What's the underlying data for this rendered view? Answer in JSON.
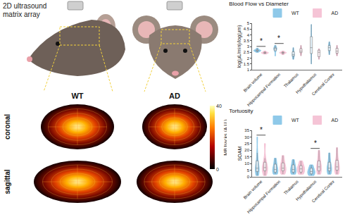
{
  "illustration": {
    "probe_label": [
      "2D ultrasound",
      "matrix array"
    ],
    "groups": [
      "WT",
      "AD"
    ],
    "views": [
      "coronal",
      "sagittal"
    ],
    "colorbar": {
      "label": "MB tracks (A.U.)",
      "range": [
        0,
        40
      ],
      "ticks": [
        0,
        40
      ]
    }
  },
  "chart_data": [
    {
      "type": "violin",
      "title": "Blood Flow vs Diameter",
      "y_label": "log(µL/min)/log(µm)",
      "categories": [
        "Brain volume",
        "Hippocampal Formation",
        "Thalamus",
        "Hypothalamus",
        "Cerebral Cortex"
      ],
      "series": [
        {
          "name": "WT",
          "color": "#8fc9e9",
          "values": [
            [
              2.5,
              2.6,
              2.62,
              2.65,
              2.68,
              2.72,
              2.85
            ],
            [
              2.2,
              2.6,
              2.75,
              2.8,
              2.85,
              2.9,
              3.1
            ],
            [
              1.9,
              2.15,
              2.25,
              2.3,
              2.4,
              2.6,
              2.9
            ],
            [
              1.5,
              2.2,
              2.6,
              2.8,
              3.0,
              3.5,
              4.2,
              4.9
            ],
            [
              2.3,
              2.6,
              2.8,
              2.9,
              3.0,
              3.1,
              3.4
            ]
          ]
        },
        {
          "name": "AD",
          "color": "#f5c4d6",
          "values": [
            [
              2.35,
              2.42,
              2.45,
              2.47,
              2.5,
              2.6
            ],
            [
              2.3,
              2.42,
              2.45,
              2.48,
              2.5,
              2.6
            ],
            [
              2.2,
              2.45,
              2.55,
              2.6,
              2.7,
              2.85,
              3.1
            ],
            [
              1.9,
              2.1,
              2.2,
              2.5,
              2.65,
              2.7,
              2.8
            ],
            [
              2.2,
              2.4,
              2.5,
              2.6,
              2.7,
              2.9,
              3.1
            ]
          ]
        }
      ],
      "ylim": [
        1,
        5
      ],
      "yticks": [
        1,
        1.5,
        2,
        2.5,
        3,
        3.5,
        4,
        4.5,
        5
      ],
      "legend": "top right",
      "grid": false,
      "annotations": [
        {
          "category": "Brain volume",
          "text": "*"
        },
        {
          "category": "Hippocampal Formation",
          "text": "*"
        }
      ]
    },
    {
      "type": "violin",
      "title": "Tortuosity",
      "y_label": "SOAM",
      "categories": [
        "Brain volume",
        "Hippocampal Formation",
        "Thalamus",
        "Hypothalamus",
        "Cerebral Cortex"
      ],
      "series": [
        {
          "name": "WT",
          "color": "#8fc9e9",
          "values": [
            [
              1,
              3,
              4,
              5,
              6,
              7,
              9,
              12,
              18,
              30
            ],
            [
              2,
              3,
              4,
              5,
              6,
              8,
              11,
              14
            ],
            [
              2,
              3,
              4,
              5,
              6,
              8,
              10,
              13
            ],
            [
              1,
              2,
              3,
              4,
              5,
              7,
              9
            ],
            [
              2,
              4,
              5,
              6,
              7,
              9,
              13,
              18
            ]
          ]
        },
        {
          "name": "AD",
          "color": "#f5c4d6",
          "values": [
            [
              1,
              3,
              5,
              6,
              7,
              8,
              10,
              14,
              25
            ],
            [
              2,
              4,
              5,
              6,
              7,
              9,
              12,
              16
            ],
            [
              2,
              3,
              5,
              6,
              7,
              9,
              12
            ],
            [
              2,
              4,
              5,
              7,
              8,
              10,
              14,
              20
            ],
            [
              2,
              4,
              6,
              7,
              8,
              10,
              15,
              22
            ]
          ]
        }
      ],
      "ylim": [
        0,
        35
      ],
      "yticks": [
        0,
        5,
        10,
        15,
        20,
        25,
        30,
        35
      ],
      "legend": "top right",
      "grid": false,
      "annotations": [
        {
          "category": "Brain volume",
          "text": "*"
        },
        {
          "category": "Hypothalamus",
          "text": "*"
        }
      ]
    }
  ]
}
